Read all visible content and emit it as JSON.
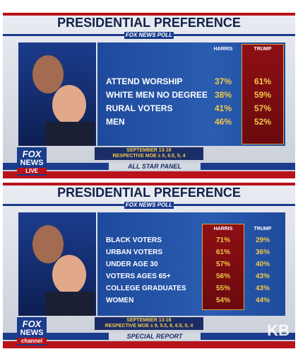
{
  "panels": [
    {
      "title": "PRESIDENTIAL PREFERENCE",
      "poll": "FOX NEWS POLL",
      "columns": [
        "HARRIS",
        "TRUMP"
      ],
      "highlight_column": 1,
      "rows": [
        [
          "ATTEND WORSHIP",
          "37%",
          "61%"
        ],
        [
          "WHITE MEN NO DEGREE",
          "38%",
          "59%"
        ],
        [
          "RURAL VOTERS",
          "41%",
          "57%"
        ],
        [
          "MEN",
          "46%",
          "52%"
        ]
      ],
      "footnote": [
        "SEPTEMBER 13-16",
        "RESPECTIVE MOE ± 5, 6.5, 5, 4"
      ],
      "logo": [
        "FOX",
        "NEWS",
        "LIVE"
      ],
      "banner": "ALL STAR PANEL"
    },
    {
      "title": "PRESIDENTIAL PREFERENCE",
      "poll": "FOX NEWS POLL",
      "columns": [
        "HARRIS",
        "TRUMP"
      ],
      "highlight_column": 0,
      "rows": [
        [
          "BLACK VOTERS",
          "71%",
          "29%"
        ],
        [
          "URBAN VOTERS",
          "61%",
          "36%"
        ],
        [
          "UNDER AGE 30",
          "57%",
          "40%"
        ],
        [
          "VOTERS AGES 65+",
          "56%",
          "43%"
        ],
        [
          "COLLEGE GRADUATES",
          "55%",
          "43%"
        ],
        [
          "WOMEN",
          "54%",
          "44%"
        ]
      ],
      "footnote": [
        "SEPTEMBER 13-16",
        "RESPECTIVE MOE ± 9, 5.5, 8, 6.5, 5, 4"
      ],
      "logo": [
        "FOX",
        "NEWS",
        "channel"
      ],
      "banner": "SPECIAL REPORT"
    }
  ],
  "watermark": "KB"
}
